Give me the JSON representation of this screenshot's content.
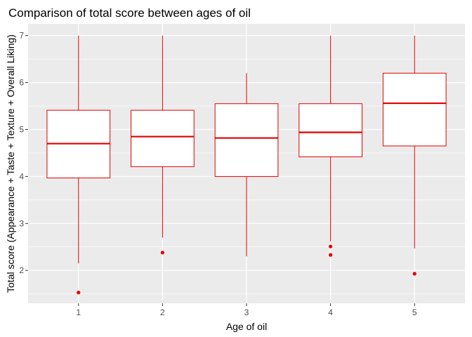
{
  "chart_data": {
    "type": "boxplot",
    "title": "Comparison of total score between ages of oil",
    "xlabel": "Age of oil",
    "ylabel": "Total score (Appearance + Taste + Texture + Overall Liking)",
    "categories": [
      "1",
      "2",
      "3",
      "4",
      "5"
    ],
    "ylim": [
      1.3,
      7.25
    ],
    "yticks": [
      2,
      3,
      4,
      5,
      6,
      7
    ],
    "grid": true,
    "box_color": "#e00000",
    "box_fill": "#ffffff",
    "outlier_color": "#e00000",
    "panel_background": "#ebebeb",
    "grid_color": "#ffffff",
    "boxes": [
      {
        "category": "1",
        "whisker_low": 2.15,
        "q1": 3.97,
        "median": 4.7,
        "q3": 5.41,
        "whisker_high": 7.0,
        "outliers": [
          1.53
        ]
      },
      {
        "category": "2",
        "whisker_low": 2.7,
        "q1": 4.21,
        "median": 4.85,
        "q3": 5.41,
        "whisker_high": 7.0,
        "outliers": [
          2.38
        ]
      },
      {
        "category": "3",
        "whisker_low": 2.3,
        "q1": 4.0,
        "median": 4.82,
        "q3": 5.55,
        "whisker_high": 6.2,
        "outliers": []
      },
      {
        "category": "4",
        "whisker_low": 2.62,
        "q1": 4.42,
        "median": 4.94,
        "q3": 5.55,
        "whisker_high": 7.0,
        "outliers": [
          2.51,
          2.33
        ]
      },
      {
        "category": "5",
        "whisker_low": 2.47,
        "q1": 4.65,
        "median": 5.56,
        "q3": 6.2,
        "whisker_high": 7.0,
        "outliers": [
          1.93
        ]
      }
    ]
  }
}
